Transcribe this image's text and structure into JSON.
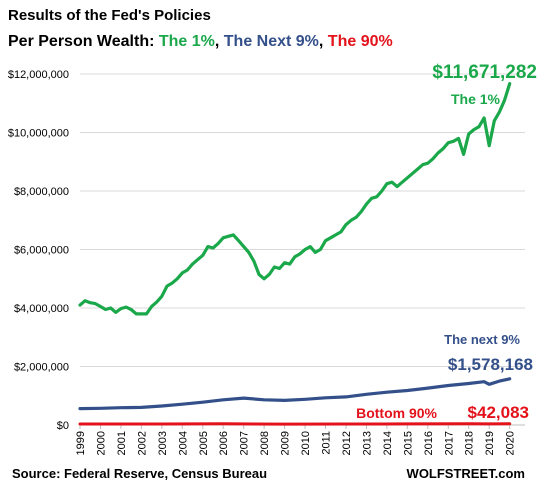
{
  "title": "Results of the Fed's Policies",
  "subtitle": {
    "prefix": "Per Person Wealth: ",
    "parts": [
      {
        "text": "The 1%",
        "color": "#1aa84a"
      },
      {
        "text": ", ",
        "color": "#000000"
      },
      {
        "text": "The Next 9%",
        "color": "#34508a"
      },
      {
        "text": ", ",
        "color": "#000000"
      },
      {
        "text": "The 90%",
        "color": "#e3121b"
      }
    ]
  },
  "source": "Source: Federal Reserve, Census Bureau",
  "brand": "WOLFSTREET.com",
  "chart_data": {
    "type": "line",
    "ylim": [
      0,
      12000000
    ],
    "yticks": [
      0,
      2000000,
      4000000,
      6000000,
      8000000,
      10000000,
      12000000
    ],
    "ytick_labels": [
      "$0",
      "$2,000,000",
      "$4,000,000",
      "$6,000,000",
      "$8,000,000",
      "$10,000,000",
      "$12,000,000"
    ],
    "xlim": [
      1999.0,
      2020.75
    ],
    "xtick_labels": [
      "1999",
      "2000",
      "2001",
      "2002",
      "2003",
      "2004",
      "2005",
      "2006",
      "2007",
      "2008",
      "2009",
      "2010",
      "2011",
      "2012",
      "2013",
      "2014",
      "2015",
      "2016",
      "2017",
      "2018",
      "2019",
      "2020"
    ],
    "series": [
      {
        "name": "The 1%",
        "color": "#1aa84a",
        "end_label": "$11,671,282",
        "points": [
          [
            1999.0,
            4100000
          ],
          [
            1999.25,
            4250000
          ],
          [
            1999.5,
            4180000
          ],
          [
            1999.75,
            4150000
          ],
          [
            2000.0,
            4050000
          ],
          [
            2000.25,
            3950000
          ],
          [
            2000.5,
            4000000
          ],
          [
            2000.75,
            3850000
          ],
          [
            2001.0,
            3980000
          ],
          [
            2001.25,
            4030000
          ],
          [
            2001.5,
            3950000
          ],
          [
            2001.75,
            3800000
          ],
          [
            2002.0,
            3800000
          ],
          [
            2002.25,
            3800000
          ],
          [
            2002.5,
            4050000
          ],
          [
            2002.75,
            4200000
          ],
          [
            2003.0,
            4400000
          ],
          [
            2003.25,
            4750000
          ],
          [
            2003.5,
            4850000
          ],
          [
            2003.75,
            5000000
          ],
          [
            2004.0,
            5200000
          ],
          [
            2004.25,
            5300000
          ],
          [
            2004.5,
            5500000
          ],
          [
            2004.75,
            5650000
          ],
          [
            2005.0,
            5800000
          ],
          [
            2005.25,
            6100000
          ],
          [
            2005.5,
            6050000
          ],
          [
            2005.75,
            6200000
          ],
          [
            2006.0,
            6400000
          ],
          [
            2006.25,
            6450000
          ],
          [
            2006.5,
            6500000
          ],
          [
            2006.75,
            6300000
          ],
          [
            2007.0,
            6100000
          ],
          [
            2007.25,
            5900000
          ],
          [
            2007.5,
            5600000
          ],
          [
            2007.75,
            5150000
          ],
          [
            2008.0,
            5000000
          ],
          [
            2008.25,
            5150000
          ],
          [
            2008.5,
            5400000
          ],
          [
            2008.75,
            5350000
          ],
          [
            2009.0,
            5550000
          ],
          [
            2009.25,
            5500000
          ],
          [
            2009.5,
            5750000
          ],
          [
            2009.75,
            5850000
          ],
          [
            2010.0,
            6000000
          ],
          [
            2010.25,
            6100000
          ],
          [
            2010.5,
            5900000
          ],
          [
            2010.75,
            6000000
          ],
          [
            2011.0,
            6300000
          ],
          [
            2011.25,
            6400000
          ],
          [
            2011.5,
            6500000
          ],
          [
            2011.75,
            6600000
          ],
          [
            2012.0,
            6850000
          ],
          [
            2012.25,
            7000000
          ],
          [
            2012.5,
            7100000
          ],
          [
            2012.75,
            7300000
          ],
          [
            2013.0,
            7550000
          ],
          [
            2013.25,
            7750000
          ],
          [
            2013.5,
            7800000
          ],
          [
            2013.75,
            8000000
          ],
          [
            2014.0,
            8250000
          ],
          [
            2014.25,
            8300000
          ],
          [
            2014.5,
            8150000
          ],
          [
            2014.75,
            8300000
          ],
          [
            2015.0,
            8450000
          ],
          [
            2015.25,
            8600000
          ],
          [
            2015.5,
            8750000
          ],
          [
            2015.75,
            8900000
          ],
          [
            2016.0,
            8950000
          ],
          [
            2016.25,
            9100000
          ],
          [
            2016.5,
            9300000
          ],
          [
            2016.75,
            9450000
          ],
          [
            2017.0,
            9650000
          ],
          [
            2017.25,
            9700000
          ],
          [
            2017.5,
            9800000
          ],
          [
            2017.75,
            9250000
          ],
          [
            2018.0,
            9950000
          ],
          [
            2018.25,
            10100000
          ],
          [
            2018.5,
            10200000
          ],
          [
            2018.75,
            10500000
          ],
          [
            2019.0,
            9550000
          ],
          [
            2019.25,
            10400000
          ],
          [
            2019.5,
            10700000
          ],
          [
            2019.75,
            11100000
          ],
          [
            2020.0,
            11671282
          ]
        ]
      },
      {
        "name": "The next 9%",
        "color": "#34508a",
        "end_label": "$1,578,168",
        "points": [
          [
            1999.0,
            560000
          ],
          [
            2000.0,
            570000
          ],
          [
            2001.0,
            590000
          ],
          [
            2002.0,
            600000
          ],
          [
            2003.0,
            650000
          ],
          [
            2004.0,
            710000
          ],
          [
            2005.0,
            780000
          ],
          [
            2006.0,
            860000
          ],
          [
            2007.0,
            920000
          ],
          [
            2008.0,
            860000
          ],
          [
            2009.0,
            840000
          ],
          [
            2010.0,
            880000
          ],
          [
            2011.0,
            930000
          ],
          [
            2012.0,
            960000
          ],
          [
            2013.0,
            1050000
          ],
          [
            2014.0,
            1120000
          ],
          [
            2015.0,
            1180000
          ],
          [
            2016.0,
            1260000
          ],
          [
            2017.0,
            1350000
          ],
          [
            2018.0,
            1420000
          ],
          [
            2018.75,
            1480000
          ],
          [
            2019.0,
            1390000
          ],
          [
            2019.5,
            1500000
          ],
          [
            2020.0,
            1578168
          ]
        ]
      },
      {
        "name": "Bottom 90%",
        "color": "#e3121b",
        "end_label": "$42,083",
        "points": [
          [
            1999.0,
            33000
          ],
          [
            2003.0,
            35000
          ],
          [
            2006.0,
            40000
          ],
          [
            2009.0,
            32000
          ],
          [
            2012.0,
            33000
          ],
          [
            2015.0,
            36000
          ],
          [
            2018.0,
            40000
          ],
          [
            2019.0,
            38000
          ],
          [
            2020.0,
            42083
          ]
        ]
      }
    ]
  }
}
